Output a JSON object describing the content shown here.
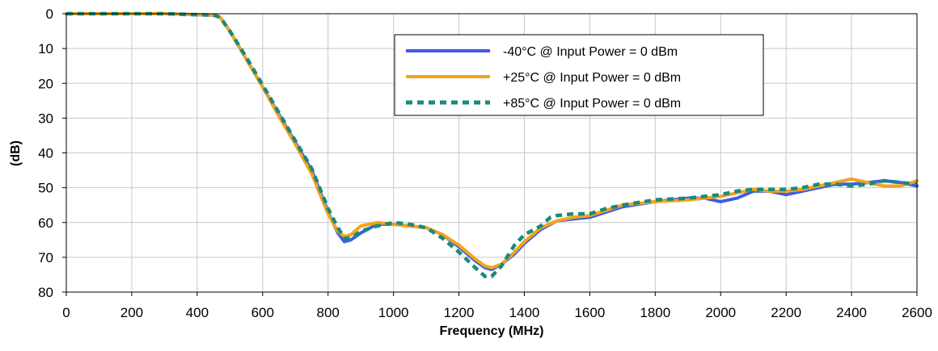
{
  "chart_data": {
    "type": "line",
    "title": "",
    "xlabel": "Frequency (MHz)",
    "ylabel": "(dB)",
    "xlim": [
      0,
      2600
    ],
    "ylim": [
      0,
      80
    ],
    "y_inverted": true,
    "xticks": [
      0,
      200,
      400,
      600,
      800,
      1000,
      1200,
      1400,
      1600,
      1800,
      2000,
      2200,
      2400,
      2600
    ],
    "yticks": [
      0,
      10,
      20,
      30,
      40,
      50,
      60,
      70,
      80
    ],
    "grid": true,
    "legend_position": "top-right",
    "series": [
      {
        "name": "-40°C @  Input Power = 0 dBm",
        "color": "#3b5ee6",
        "style": "solid",
        "x": [
          0,
          100,
          200,
          300,
          400,
          450,
          470,
          500,
          550,
          600,
          650,
          700,
          750,
          800,
          830,
          850,
          870,
          900,
          950,
          1000,
          1050,
          1100,
          1150,
          1200,
          1250,
          1280,
          1300,
          1330,
          1370,
          1400,
          1450,
          1500,
          1550,
          1600,
          1650,
          1700,
          1800,
          1900,
          1950,
          2000,
          2050,
          2100,
          2150,
          2200,
          2250,
          2300,
          2350,
          2400,
          2450,
          2500,
          2550,
          2600
        ],
        "y": [
          0,
          0,
          0,
          0,
          0.3,
          0.4,
          1,
          5,
          13,
          21,
          29,
          37,
          45,
          57,
          63,
          65.5,
          65,
          63,
          60.5,
          60.5,
          61,
          61.5,
          63.5,
          67,
          71,
          73,
          73.5,
          72,
          69,
          66,
          62,
          59.5,
          59,
          58.5,
          57,
          55.5,
          54,
          53,
          53,
          54,
          53,
          51,
          51,
          52,
          51,
          50,
          49,
          49,
          48.5,
          48,
          48.5,
          49.5
        ]
      },
      {
        "name": "+25°C @  Input Power = 0 dBm",
        "color": "#f5a31b",
        "style": "solid",
        "x": [
          0,
          100,
          200,
          300,
          400,
          450,
          470,
          500,
          550,
          600,
          650,
          700,
          750,
          800,
          830,
          850,
          870,
          900,
          950,
          1000,
          1050,
          1100,
          1150,
          1200,
          1250,
          1280,
          1300,
          1330,
          1370,
          1400,
          1450,
          1500,
          1550,
          1600,
          1650,
          1700,
          1800,
          1900,
          1950,
          2000,
          2050,
          2100,
          2150,
          2200,
          2250,
          2300,
          2350,
          2400,
          2450,
          2500,
          2550,
          2600
        ],
        "y": [
          0,
          0,
          0,
          0,
          0.3,
          0.4,
          1,
          5,
          13,
          21,
          29.5,
          37.5,
          46,
          57.5,
          62.5,
          64,
          63.5,
          61,
          60,
          60.5,
          61,
          61.5,
          63.5,
          66.5,
          70.5,
          72.5,
          73,
          72,
          68.5,
          65.5,
          61.5,
          59.5,
          58.5,
          58,
          56.5,
          55,
          54,
          53.5,
          53,
          52.5,
          51.5,
          50.5,
          51,
          51,
          50.5,
          49.5,
          48.5,
          47.5,
          48.5,
          49.5,
          49.5,
          48
        ]
      },
      {
        "name": "+85°C @  Input Power = 0 dBm",
        "color": "#1a8a7a",
        "style": "dashed",
        "x": [
          0,
          100,
          200,
          300,
          400,
          450,
          470,
          500,
          550,
          600,
          650,
          700,
          750,
          800,
          830,
          850,
          870,
          900,
          950,
          1000,
          1050,
          1100,
          1150,
          1200,
          1250,
          1280,
          1300,
          1330,
          1370,
          1400,
          1450,
          1480,
          1500,
          1550,
          1600,
          1650,
          1700,
          1800,
          1900,
          1950,
          2000,
          2050,
          2100,
          2150,
          2200,
          2250,
          2300,
          2350,
          2400,
          2450,
          2500,
          2550,
          2600
        ],
        "y": [
          0,
          0,
          0,
          0,
          0.3,
          0.4,
          1,
          5,
          12.5,
          20.5,
          28.5,
          36.5,
          44.5,
          56,
          61.5,
          64.5,
          64.5,
          62.5,
          61,
          60,
          60.5,
          61.5,
          64.5,
          68.5,
          73,
          75.5,
          75.5,
          72.5,
          66.5,
          63.5,
          61,
          58.5,
          58,
          57.5,
          57.5,
          56,
          55,
          53.5,
          53,
          52.5,
          52,
          51,
          50.5,
          50.5,
          50.5,
          50,
          49,
          49,
          49.5,
          49,
          48,
          48.5,
          49
        ]
      }
    ]
  }
}
